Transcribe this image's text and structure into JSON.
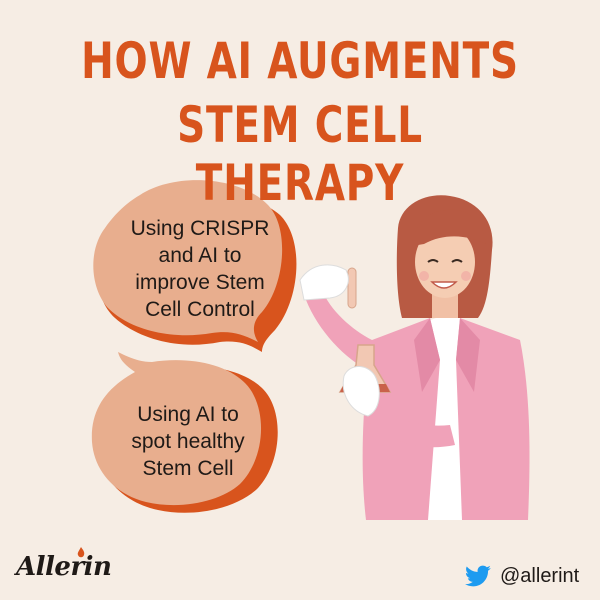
{
  "title": {
    "line1": "HOW AI AUGMENTS",
    "line2": "STEM CELL THERAPY"
  },
  "bubbles": [
    {
      "lines": [
        "Using CRISPR",
        "and AI to",
        "improve Stem",
        "Cell Control"
      ]
    },
    {
      "lines": [
        "Using AI to",
        "spot healthy",
        "Stem Cell"
      ]
    }
  ],
  "footer": {
    "brand": "Allerin",
    "handle": "@allerint"
  },
  "icons": {
    "social": "twitter-bird-icon",
    "brand_mark": "flame-icon"
  },
  "colors": {
    "background": "#f6ede4",
    "title": "#d8541d",
    "bubble_light": "#e8ae8e",
    "bubble_dark": "#d8541d",
    "jacket": "#f0a2b9",
    "twitter": "#1d9bf0"
  }
}
